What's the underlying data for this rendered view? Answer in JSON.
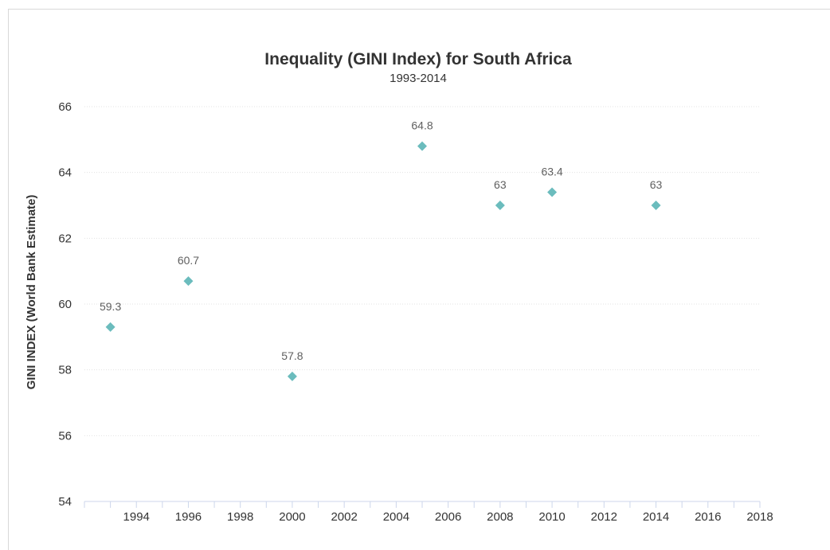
{
  "chart_data": {
    "type": "scatter",
    "title": "Inequality (GINI Index) for South Africa",
    "subtitle": "1993-2014",
    "ylabel": "GINI INDEX (World Bank Estimate)",
    "xlim": [
      1992,
      2018
    ],
    "ylim": [
      54,
      66
    ],
    "x_ticks": [
      1994,
      1996,
      1998,
      2000,
      2002,
      2004,
      2006,
      2008,
      2010,
      2012,
      2014,
      2016,
      2018
    ],
    "y_ticks": [
      54,
      56,
      58,
      60,
      62,
      64,
      66
    ],
    "grid": true,
    "marker": "diamond",
    "color": "#6bbcbd",
    "points": [
      {
        "x": 1993,
        "y": 59.3,
        "label": "59.3"
      },
      {
        "x": 1996,
        "y": 60.7,
        "label": "60.7"
      },
      {
        "x": 2000,
        "y": 57.8,
        "label": "57.8"
      },
      {
        "x": 2005,
        "y": 64.8,
        "label": "64.8"
      },
      {
        "x": 2008,
        "y": 63,
        "label": "63"
      },
      {
        "x": 2010,
        "y": 63.4,
        "label": "63.4"
      },
      {
        "x": 2014,
        "y": 63,
        "label": "63"
      }
    ]
  }
}
